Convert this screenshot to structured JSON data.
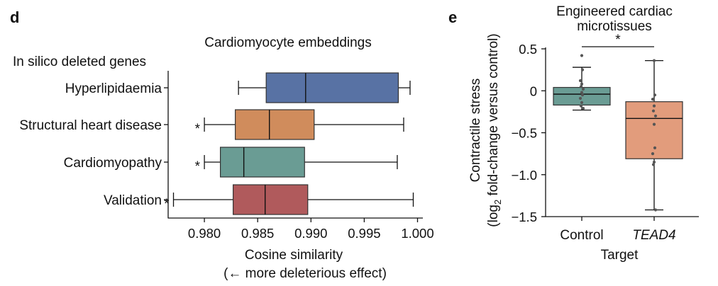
{
  "chart_data": [
    {
      "panel": "d",
      "type": "boxplot",
      "orientation": "horizontal",
      "title": "Cardiomyocyte embeddings",
      "group_heading": "In silico deleted genes",
      "xlabel": "Cosine similarity",
      "xlabel_note": "(← more deleterious effect)",
      "xlim": [
        0.9766,
        1.0005
      ],
      "xticks": [
        0.98,
        0.985,
        0.99,
        0.995,
        1.0
      ],
      "xtick_labels": [
        "0.980",
        "0.985",
        "0.990",
        "0.995",
        "1.000"
      ],
      "categories": [
        "Hyperlipidaemia",
        "Structural heart disease",
        "Cardiomyopathy",
        "Validation"
      ],
      "boxes": [
        {
          "name": "Hyperlipidaemia",
          "whislo": 0.9832,
          "q1": 0.9858,
          "med": 0.9895,
          "q3": 0.9982,
          "whishi": 0.9993,
          "color": "#5872A4",
          "star": ""
        },
        {
          "name": "Structural heart disease",
          "whislo": 0.98,
          "q1": 0.9829,
          "med": 0.9861,
          "q3": 0.9903,
          "whishi": 0.9987,
          "color": "#D08C5C",
          "star": "*"
        },
        {
          "name": "Cardiomyopathy",
          "whislo": 0.98,
          "q1": 0.9815,
          "med": 0.9837,
          "q3": 0.9894,
          "whishi": 0.9981,
          "color": "#6A9C94",
          "star": "*"
        },
        {
          "name": "Validation",
          "whislo": 0.9771,
          "q1": 0.9827,
          "med": 0.9857,
          "q3": 0.9897,
          "whishi": 0.9996,
          "color": "#B05A5C",
          "star": "*"
        }
      ]
    },
    {
      "panel": "e",
      "type": "boxplot",
      "orientation": "vertical",
      "title_lines": [
        "Engineered cardiac",
        "microtissues"
      ],
      "ylabel_line1": "Contractile stress",
      "ylabel_line2_parts": [
        "(log",
        "2",
        " fold-change versus control)"
      ],
      "xlabel": "Target",
      "ylim": [
        -1.5,
        0.5
      ],
      "yticks": [
        0.5,
        0,
        -0.5,
        -1.0,
        -1.5
      ],
      "ytick_labels": [
        "0.5",
        "0",
        "−0.5",
        "−1.0",
        "−1.5"
      ],
      "categories": [
        "Control",
        "TEAD4"
      ],
      "significance": "*",
      "boxes": [
        {
          "name": "Control",
          "italic": false,
          "whislo": -0.23,
          "q1": -0.17,
          "med": -0.04,
          "q3": 0.04,
          "whishi": 0.28,
          "color": "#6A9C94",
          "points": [
            0.42,
            0.25,
            0.12,
            0.08,
            0.05,
            0.02,
            -0.02,
            -0.05,
            -0.09,
            -0.14,
            -0.18,
            -0.21
          ]
        },
        {
          "name": "TEAD4",
          "italic": true,
          "whislo": -1.42,
          "q1": -0.81,
          "med": -0.33,
          "q3": -0.13,
          "whishi": 0.36,
          "color": "#E29C7C",
          "points": [
            0.36,
            -0.05,
            -0.1,
            -0.18,
            -0.24,
            -0.3,
            -0.4,
            -0.68,
            -0.75,
            -0.85,
            -0.88,
            -1.42
          ]
        }
      ]
    }
  ]
}
